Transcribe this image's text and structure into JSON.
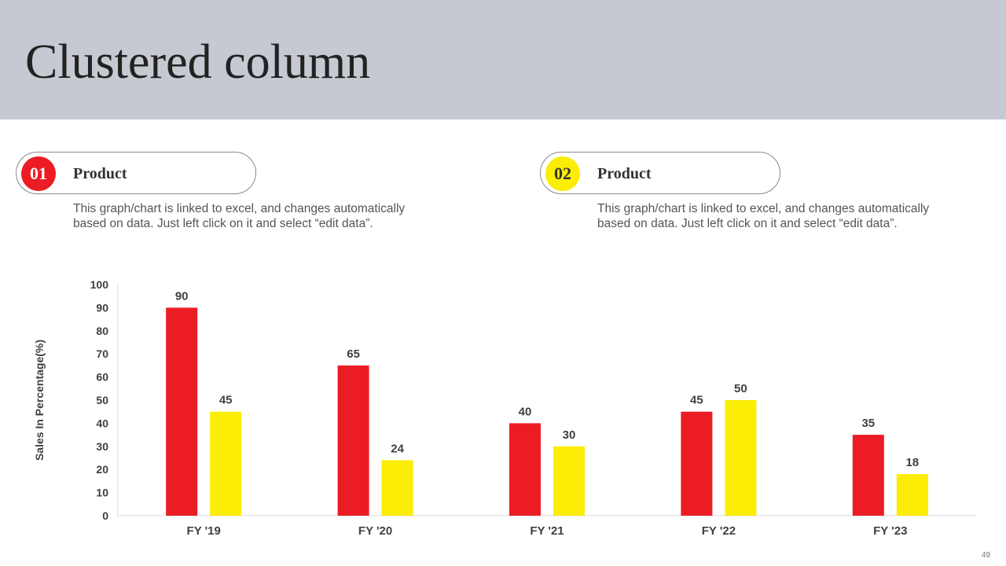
{
  "slide": {
    "title": "Clustered column",
    "page_number": "49"
  },
  "legend": [
    {
      "number": "01",
      "label": "Product",
      "description": "This graph/chart is linked to excel, and changes automatically based on data. Just left click on it and select “edit data”.",
      "color": "#ec1c24",
      "number_color": "#ffffff"
    },
    {
      "number": "02",
      "label": "Product",
      "description": "This graph/chart is linked to excel, and changes automatically based on data. Just left click on it and select “edit data”.",
      "color": "#fbed05",
      "number_color": "#333333"
    }
  ],
  "chart_data": {
    "type": "bar",
    "categories": [
      "FY '19",
      "FY '20",
      "FY '21",
      "FY '22",
      "FY '23"
    ],
    "series": [
      {
        "values": [
          90,
          65,
          40,
          45,
          35
        ],
        "color": "#ec1c24"
      },
      {
        "values": [
          45,
          24,
          30,
          50,
          18
        ],
        "color": "#fbed05"
      }
    ],
    "ylabel": "Sales In Percentage(%)",
    "ylim": [
      0,
      100
    ],
    "yticks": [
      0,
      10,
      20,
      30,
      40,
      50,
      60,
      70,
      80,
      90,
      100
    ],
    "grid": false,
    "data_labels": true
  }
}
